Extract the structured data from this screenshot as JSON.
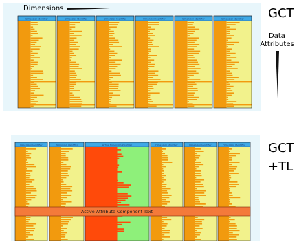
{
  "labels": {
    "dimensions": "Dimensions",
    "gct": "GCT",
    "data_attributes_line1": "Data",
    "data_attributes_line2": "Attributes",
    "gct_tl_line1": "GCT",
    "gct_tl_line2": "+TL"
  },
  "top_panel": {
    "columns": [
      {
        "header": "Dimension Identifier"
      },
      {
        "header": "Dimension Identifier"
      },
      {
        "header": "Dimension Identifier"
      },
      {
        "header": "Dimension Identifier"
      },
      {
        "header": "Dimension Identifier"
      },
      {
        "header": "Dimension Identifier"
      }
    ]
  },
  "bottom_panel": {
    "columns": [
      {
        "header": "Dimension Identifier",
        "active": false
      },
      {
        "header": "Dimension Identifier",
        "active": false
      },
      {
        "header": "Active Dimension Identifier",
        "active": true
      },
      {
        "header": "Dimension Identifier",
        "active": false
      },
      {
        "header": "Dimension Identifier",
        "active": false
      },
      {
        "header": "Dimension Identifier",
        "active": false
      }
    ],
    "active_row_text": "Active Attribute Component Text"
  },
  "colors": {
    "panel_bg": "#e8f6fb",
    "header_blue": "#3fa9e6",
    "cell_yellow": "#f2f28c",
    "bar_orange": "#f29a0e",
    "active_red": "#ff4a0a",
    "active_green": "#8ef07a",
    "active_row": "#f47a3a"
  }
}
